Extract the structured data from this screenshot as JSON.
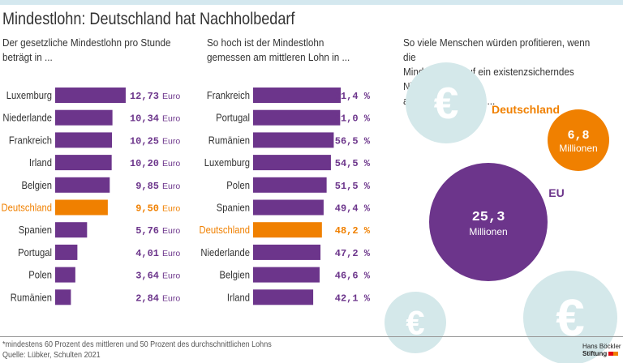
{
  "title": "Mindestlohn: Deutschland hat Nachholbedarf",
  "colors": {
    "purple": "#6c358b",
    "orange": "#f08000",
    "light_blue": "#d4e8ea",
    "top_bar": "#d4e8ef"
  },
  "chart_data": [
    {
      "type": "bar",
      "orientation": "horizontal",
      "subtitle": "Der gesetzliche Mindestlohn pro Stunde\nbeträgt in ...",
      "categories": [
        "Luxemburg",
        "Niederlande",
        "Frankreich",
        "Irland",
        "Belgien",
        "Deutschland",
        "Spanien",
        "Portugal",
        "Polen",
        "Rumänien"
      ],
      "values": [
        12.73,
        10.34,
        10.25,
        10.2,
        9.85,
        9.5,
        5.76,
        4.01,
        3.64,
        2.84
      ],
      "labels": [
        "12,73",
        "10,34",
        "10,25",
        "10,20",
        "9,85",
        "9,50",
        "5,76",
        "4,01",
        "3,64",
        "2,84"
      ],
      "unit": "Euro",
      "highlight": "Deutschland"
    },
    {
      "type": "bar",
      "orientation": "horizontal",
      "subtitle": "So hoch ist der Mindestlohn\ngemessen am mittleren Lohn in ...",
      "categories": [
        "Frankreich",
        "Portugal",
        "Rumänien",
        "Luxemburg",
        "Polen",
        "Spanien",
        "Deutschland",
        "Niederlande",
        "Belgien",
        "Irland"
      ],
      "values": [
        61.4,
        61.0,
        56.5,
        54.5,
        51.5,
        49.4,
        48.2,
        47.2,
        46.6,
        42.1
      ],
      "labels": [
        "61,4 %",
        "61,0 %",
        "56,5 %",
        "54,5 %",
        "51,5 %",
        "49,4 %",
        "48,2 %",
        "47,2 %",
        "46,6 %",
        "42,1 %"
      ],
      "unit": "%",
      "highlight": "Deutschland"
    },
    {
      "type": "bubble",
      "subtitle": "So viele Menschen würden profitieren, wenn die\nMindestlöhne auf ein existenzsicherndes Niveau*\nangehoben werden ...",
      "items": [
        {
          "name": "Deutschland",
          "value": 6.8,
          "label": "6,8",
          "unit": "Millionen"
        },
        {
          "name": "EU",
          "value": 25.3,
          "label": "25,3",
          "unit": "Millionen"
        }
      ],
      "decoration_icon": "euro-icon"
    }
  ],
  "footnote": "*mindestens 60 Prozent des mittleren und 50 Prozent des durchschnittlichen Lohns",
  "source": "Quelle: Lübker, Schulten 2021",
  "logo": {
    "line1": "Hans Böckler",
    "line2": "Stiftung"
  }
}
